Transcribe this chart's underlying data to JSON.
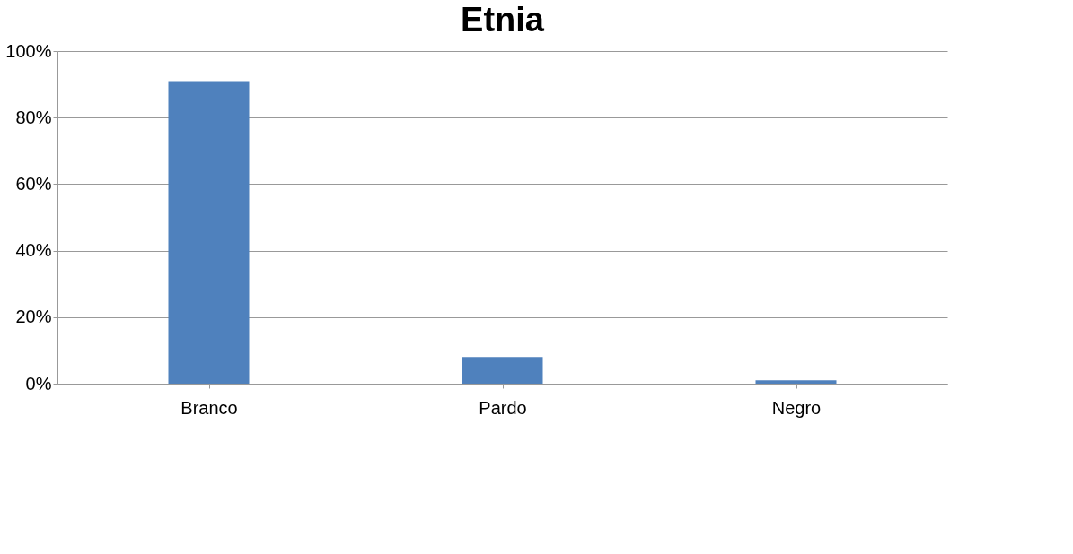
{
  "chart_data": {
    "type": "bar",
    "title": "Etnia",
    "categories": [
      "Branco",
      "Pardo",
      "Negro"
    ],
    "values": [
      91,
      8,
      1
    ],
    "color": "#4f81bd",
    "ylim": [
      0,
      100
    ],
    "yticks": [
      {
        "value": 0,
        "label": "0%"
      },
      {
        "value": 20,
        "label": "20%"
      },
      {
        "value": 40,
        "label": "40%"
      },
      {
        "value": 60,
        "label": "60%"
      },
      {
        "value": 80,
        "label": "80%"
      },
      {
        "value": 100,
        "label": "100%"
      }
    ],
    "grid": "y"
  }
}
